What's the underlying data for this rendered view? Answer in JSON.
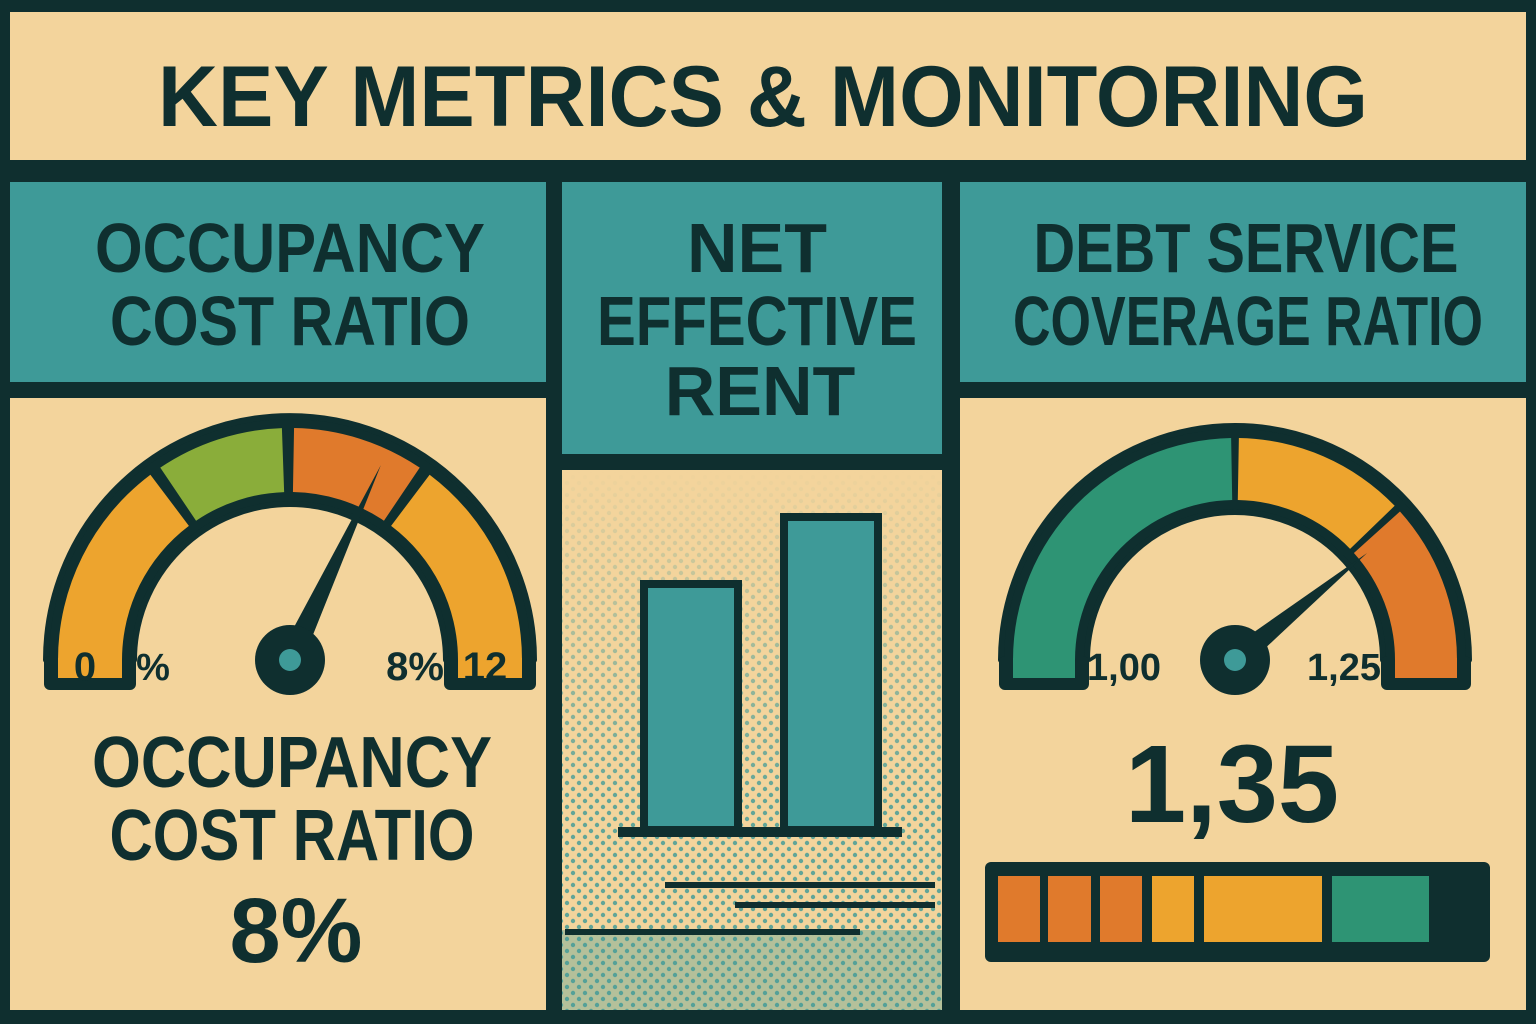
{
  "title": "KEY METRICS & MONITORING",
  "colors": {
    "cream": "#f3d49c",
    "dark": "#0f2f2f",
    "teal": "#3e9a98",
    "orange": "#e07a2c",
    "amber": "#eda42e",
    "green": "#8aad3a",
    "sea_green": "#2e9474"
  },
  "occupancy": {
    "header": [
      "OCCUPANCY",
      "COST RATIO"
    ],
    "gauge": {
      "min_label": "0",
      "unit_label": "%",
      "value_label": "8%",
      "max_label": "12",
      "value": 8,
      "max": 12
    },
    "caption": [
      "OCCUPANCY",
      "COST RATIO"
    ],
    "value": "8%"
  },
  "net_effective_rent": {
    "header": [
      "NET",
      "EFFECTIVE",
      "RENT"
    ]
  },
  "dscr": {
    "header": [
      "DEBT SERVICE",
      "COVERAGE RATIO"
    ],
    "gauge": {
      "left_label": "1,00",
      "right_label": "1,25"
    },
    "value": "1,35"
  }
}
